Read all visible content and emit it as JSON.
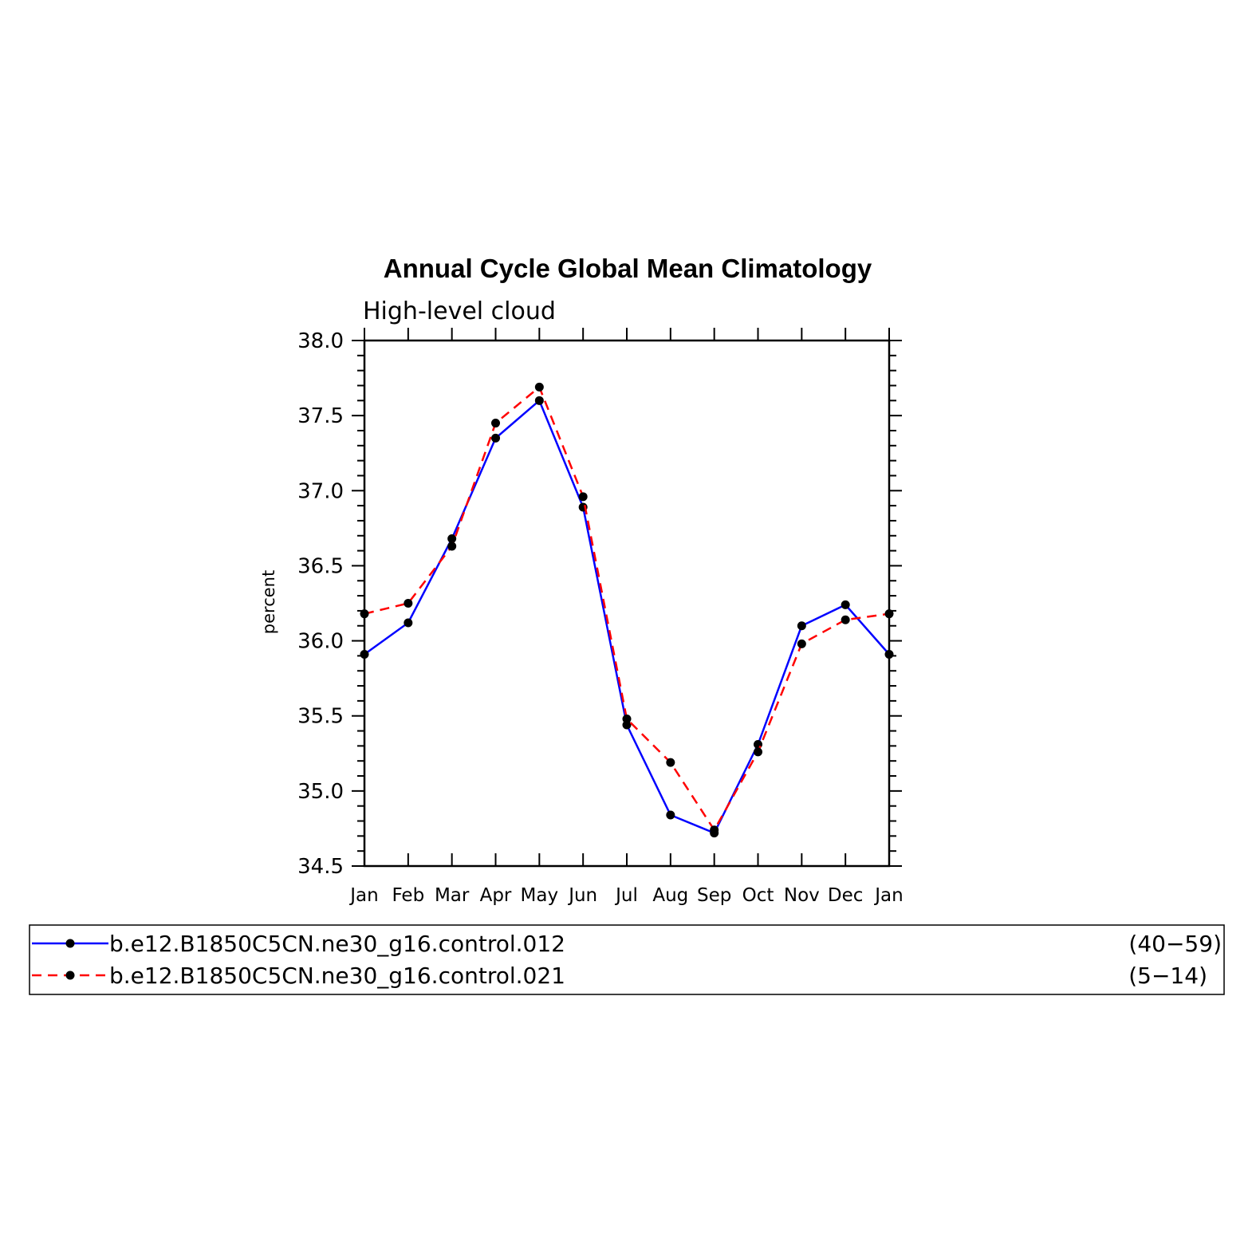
{
  "chart_data": {
    "type": "line",
    "title": "Annual Cycle Global Mean Climatology",
    "subtitle": "High-level cloud",
    "ylabel": "percent",
    "xlabel": "",
    "ylim": [
      34.5,
      38.0
    ],
    "yticks": [
      "34.5",
      "35.0",
      "35.5",
      "36.0",
      "36.5",
      "37.0",
      "37.5",
      "38.0"
    ],
    "categories": [
      "Jan",
      "Feb",
      "Mar",
      "Apr",
      "May",
      "Jun",
      "Jul",
      "Aug",
      "Sep",
      "Oct",
      "Nov",
      "Dec",
      "Jan"
    ],
    "grid": false,
    "legend_placement": "bottom",
    "series": [
      {
        "name": "b.e12.B1850C5CN.ne30_g16.control.012",
        "years": "(40−59)",
        "color": "#0000ff",
        "style": "solid",
        "values": [
          35.91,
          36.12,
          36.68,
          37.35,
          37.6,
          36.89,
          35.44,
          34.84,
          34.72,
          35.31,
          36.1,
          36.24,
          35.91
        ]
      },
      {
        "name": "b.e12.B1850C5CN.ne30_g16.control.021",
        "years": "(5−14)",
        "color": "#ff0000",
        "style": "dashed",
        "values": [
          36.18,
          36.25,
          36.63,
          37.45,
          37.69,
          36.96,
          35.48,
          35.19,
          34.74,
          35.26,
          35.98,
          36.14,
          36.18
        ]
      }
    ]
  }
}
